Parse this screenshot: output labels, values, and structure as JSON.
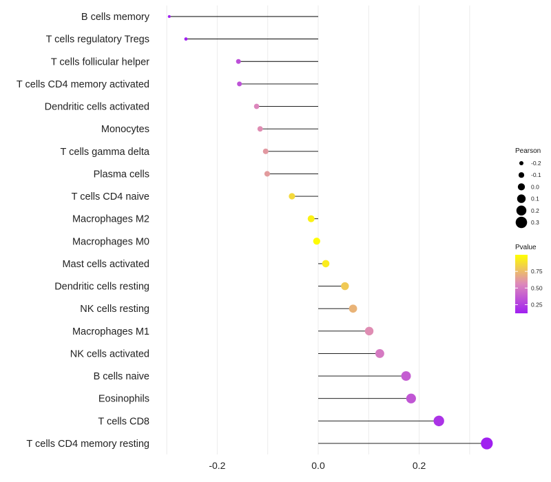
{
  "chart_data": {
    "type": "lollipop",
    "categories": [
      "B cells memory",
      "T cells regulatory  Tregs",
      "T cells follicular helper",
      "T cells CD4 memory activated",
      "Dendritic cells activated",
      "Monocytes",
      "T cells gamma delta",
      "Plasma cells",
      "T cells CD4 naive",
      "Macrophages M2",
      "Macrophages M0",
      "Mast cells activated",
      "Dendritic cells resting",
      "NK cells resting",
      "Macrophages M1",
      "NK cells activated",
      "B cells naive",
      "Eosinophils",
      "T cells CD8",
      "T cells CD4 memory resting"
    ],
    "values": [
      -0.295,
      -0.262,
      -0.158,
      -0.156,
      -0.122,
      -0.115,
      -0.104,
      -0.101,
      -0.052,
      -0.014,
      -0.003,
      0.015,
      0.053,
      0.069,
      0.101,
      0.122,
      0.174,
      0.184,
      0.239,
      0.334
    ],
    "pvalues": [
      0.02,
      0.04,
      0.32,
      0.33,
      0.55,
      0.58,
      0.62,
      0.63,
      0.86,
      0.95,
      0.99,
      0.93,
      0.8,
      0.72,
      0.58,
      0.5,
      0.38,
      0.35,
      0.2,
      0.03
    ],
    "xlim": [
      -0.3,
      0.335
    ],
    "xticks": [
      -0.2,
      0.0,
      0.2
    ],
    "xtick_labels": [
      "-0.2",
      "0.0",
      "0.2"
    ],
    "gridlines": [
      -0.3,
      -0.2,
      -0.1,
      0.0,
      0.1,
      0.2,
      0.3
    ],
    "xlabel": "",
    "ylabel": "",
    "title": "",
    "legend_placement": "right",
    "size_legend": {
      "title": "Pearson",
      "values": [
        -0.2,
        -0.1,
        0.0,
        0.1,
        0.2,
        0.3
      ],
      "labels": [
        "-0.2",
        "-0.1",
        "0.0",
        "0.1",
        "0.2",
        "0.3"
      ]
    },
    "color_legend": {
      "title": "Pvalue",
      "range": [
        0.12,
        1.0
      ],
      "ticks": [
        0.25,
        0.5,
        0.75
      ],
      "tick_labels": [
        "0.25",
        "0.50",
        "0.75"
      ],
      "low_color": "#a020f0",
      "mid_color": "#dd88bb",
      "high_color": "#ffff00"
    },
    "stem_color": "#000000",
    "grid_color": "#ebebeb"
  }
}
